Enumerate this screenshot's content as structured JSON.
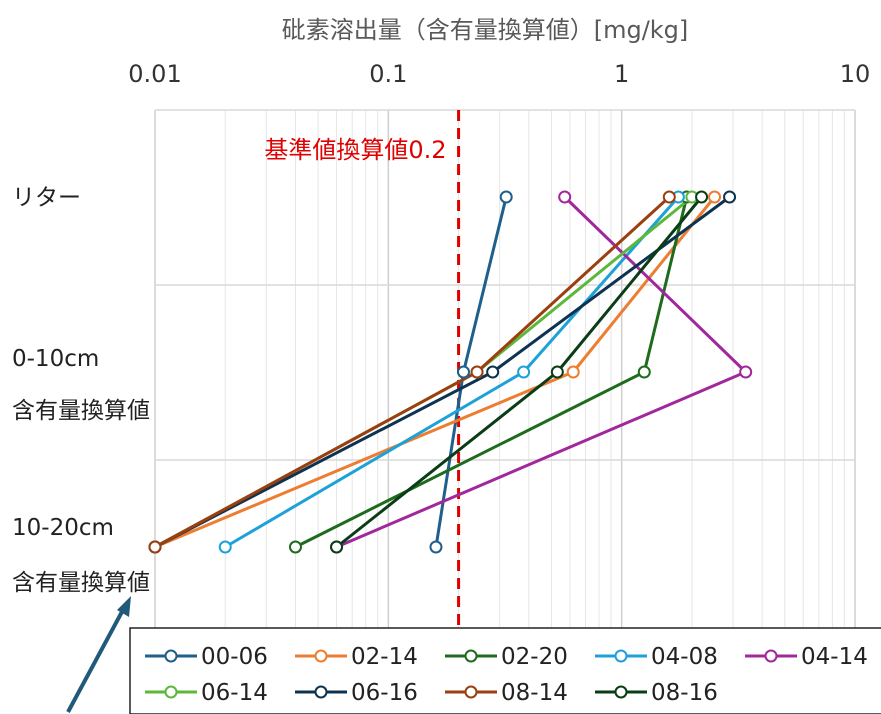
{
  "chart_data": {
    "type": "line",
    "title": "砒素溶出量（含有量換算値）[mg/kg]",
    "x_axis": {
      "scale": "log",
      "position": "top",
      "range": [
        0.01,
        10
      ],
      "tick_labels": [
        "0.01",
        "0.1",
        "1",
        "10"
      ],
      "tick_values": [
        0.01,
        0.1,
        1,
        10
      ],
      "grid": true
    },
    "categories": [
      {
        "lines": [
          "リター"
        ]
      },
      {
        "lines": [
          "0-10cm",
          "含有量換算値"
        ]
      },
      {
        "lines": [
          "10-20cm",
          "含有量換算値"
        ]
      }
    ],
    "reference_line": {
      "value": 0.2,
      "label": "基準値換算値0.2",
      "color": "#e00000"
    },
    "legend": {
      "placement": "bottom"
    },
    "series": [
      {
        "name": "00-06",
        "color": "#1f5f8b",
        "values": [
          0.32,
          0.21,
          0.16
        ]
      },
      {
        "name": "02-14",
        "color": "#ed7d31",
        "values": [
          2.5,
          0.62,
          0.01
        ]
      },
      {
        "name": "02-20",
        "color": "#1e6b1e",
        "values": [
          1.9,
          1.25,
          0.04
        ]
      },
      {
        "name": "04-08",
        "color": "#1da1d8",
        "values": [
          1.75,
          0.38,
          0.02
        ]
      },
      {
        "name": "04-14",
        "color": "#a0289c",
        "values": [
          0.57,
          3.4,
          0.06
        ]
      },
      {
        "name": "06-14",
        "color": "#5cb83a",
        "values": [
          2.0,
          0.24,
          0.01
        ]
      },
      {
        "name": "06-16",
        "color": "#0d3350",
        "values": [
          2.9,
          0.28,
          0.01
        ]
      },
      {
        "name": "08-14",
        "color": "#9c3f10",
        "values": [
          1.6,
          0.24,
          0.01
        ]
      },
      {
        "name": "08-16",
        "color": "#0a3d16",
        "values": [
          2.2,
          0.53,
          0.06
        ]
      }
    ]
  }
}
